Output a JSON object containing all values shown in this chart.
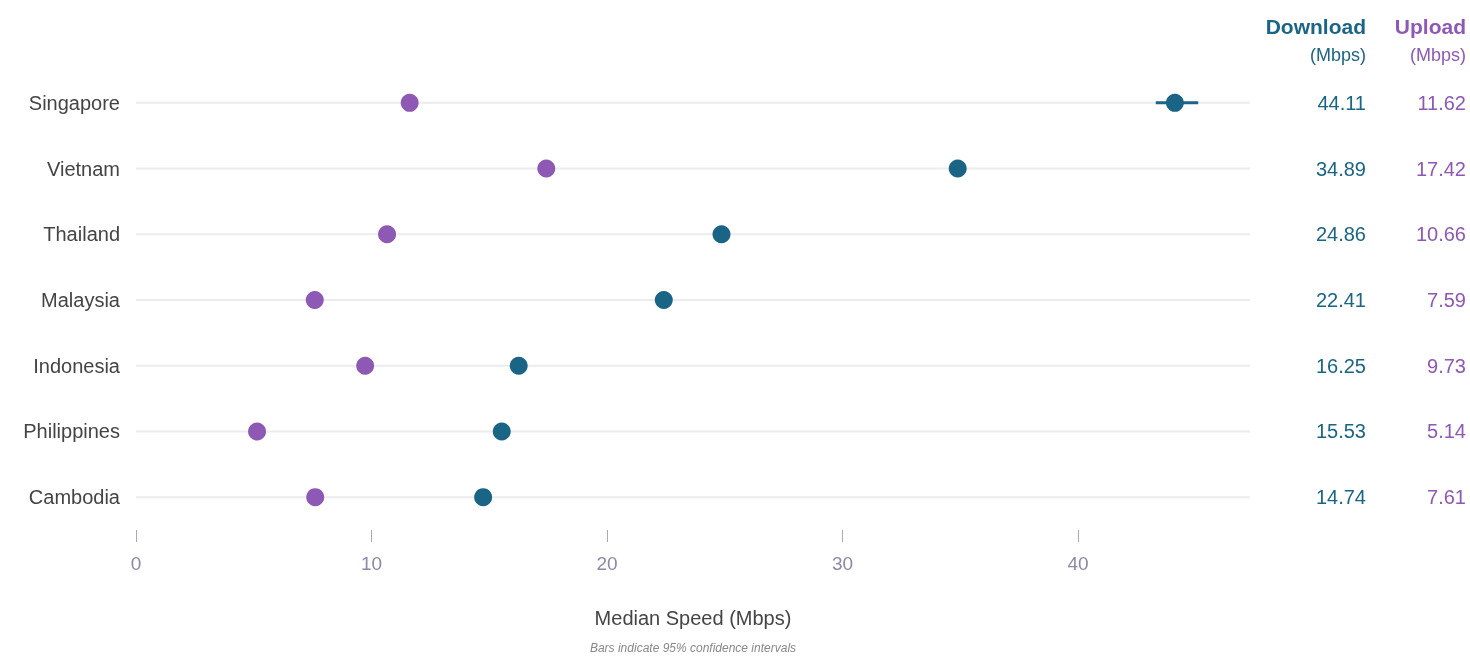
{
  "chart_data": {
    "type": "scatter",
    "orientation": "horizontal",
    "xlabel": "Median Speed (Mbps)",
    "categories": [
      "Singapore",
      "Vietnam",
      "Thailand",
      "Malaysia",
      "Indonesia",
      "Philippines",
      "Cambodia"
    ],
    "series": [
      {
        "name": "Download",
        "color": "#1a6485",
        "values": [
          44.11,
          34.89,
          24.86,
          22.41,
          16.25,
          15.53,
          14.74
        ],
        "errors": [
          [
            43.3,
            45.1
          ],
          null,
          null,
          null,
          null,
          null,
          null
        ]
      },
      {
        "name": "Upload",
        "color": "#8e58b5",
        "values": [
          11.62,
          17.42,
          10.66,
          7.59,
          9.73,
          5.14,
          7.61
        ]
      }
    ],
    "xlim": [
      0,
      47.3
    ],
    "xticks": [
      0,
      10,
      20,
      30,
      40
    ],
    "grid": "y",
    "legend": false,
    "marker": "circle",
    "data_labels": true,
    "annotations": [
      "(Mbps)",
      "(Mbps)",
      "Bars indicate 95% confidence intervals"
    ]
  }
}
